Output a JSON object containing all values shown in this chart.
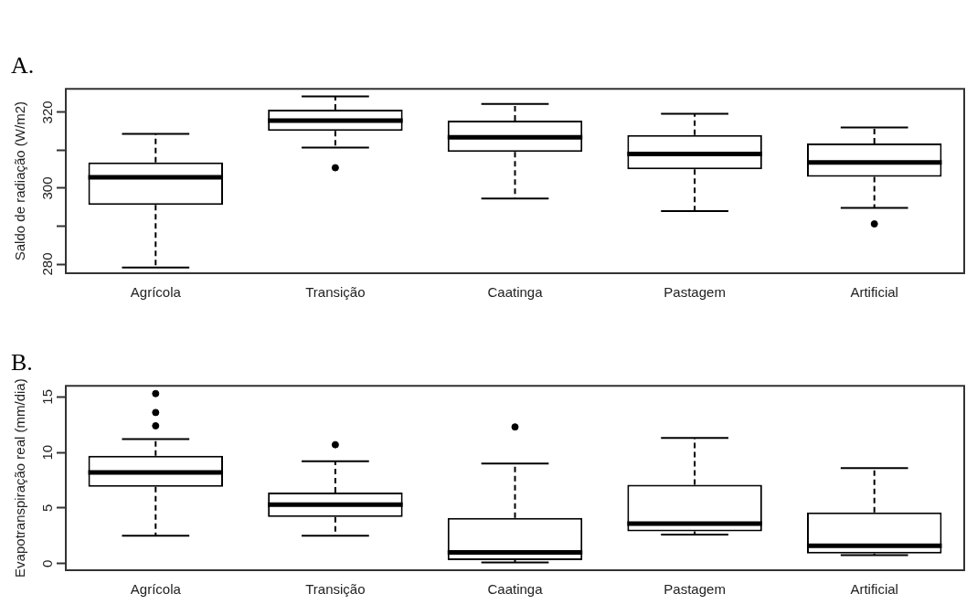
{
  "chart_data": [
    {
      "type": "box",
      "title": "A.",
      "ylabel": "Saldo de radiação (W/m2)",
      "categories": [
        "Agrícola",
        "Transição",
        "Caatinga",
        "Pastagem",
        "Artificial"
      ],
      "ylim": [
        277.6,
        326.2
      ],
      "yticks": [
        280,
        {
          "value": 290,
          "label": null
        },
        300,
        {
          "value": 310,
          "label": null
        },
        320
      ],
      "grid": false,
      "boxes": [
        {
          "low": 279.1,
          "q1": 295.6,
          "median": 302.9,
          "q3": 306.8,
          "high": 314.3
        },
        {
          "low": 310.7,
          "q1": 315.1,
          "median": 317.8,
          "q3": 320.7,
          "high": 324.2,
          "outliers": [
            305.4
          ]
        },
        {
          "low": 297.3,
          "q1": 309.6,
          "median": 313.4,
          "q3": 317.8,
          "high": 322.2
        },
        {
          "low": 294.0,
          "q1": 305.0,
          "median": 309.0,
          "q3": 314.0,
          "high": 319.6
        },
        {
          "low": 294.8,
          "q1": 303.0,
          "median": 306.8,
          "q3": 311.8,
          "high": 316.0,
          "outliers": [
            290.6
          ]
        }
      ]
    },
    {
      "type": "box",
      "title": "B.",
      "ylabel": "Evapotranspiração real (mm/dia)",
      "categories": [
        "Agrícola",
        "Transição",
        "Caatinga",
        "Pastagem",
        "Artificial"
      ],
      "ylim": [
        -0.6,
        16
      ],
      "yticks": [
        0,
        5,
        10,
        15
      ],
      "grid": false,
      "boxes": [
        {
          "low": 2.5,
          "q1": 6.9,
          "median": 8.2,
          "q3": 9.7,
          "high": 11.2,
          "outliers": [
            12.4,
            13.6,
            15.3
          ]
        },
        {
          "low": 2.5,
          "q1": 4.2,
          "median": 5.3,
          "q3": 6.4,
          "high": 9.2,
          "outliers": [
            10.7
          ]
        },
        {
          "low": 0.1,
          "q1": 0.3,
          "median": 1.0,
          "q3": 4.1,
          "high": 9.0,
          "outliers": [
            12.3
          ]
        },
        {
          "low": 2.6,
          "q1": 2.9,
          "median": 3.6,
          "q3": 7.1,
          "high": 11.3
        },
        {
          "low": 0.75,
          "q1": 0.9,
          "median": 1.6,
          "q3": 4.6,
          "high": 8.6
        }
      ]
    }
  ]
}
